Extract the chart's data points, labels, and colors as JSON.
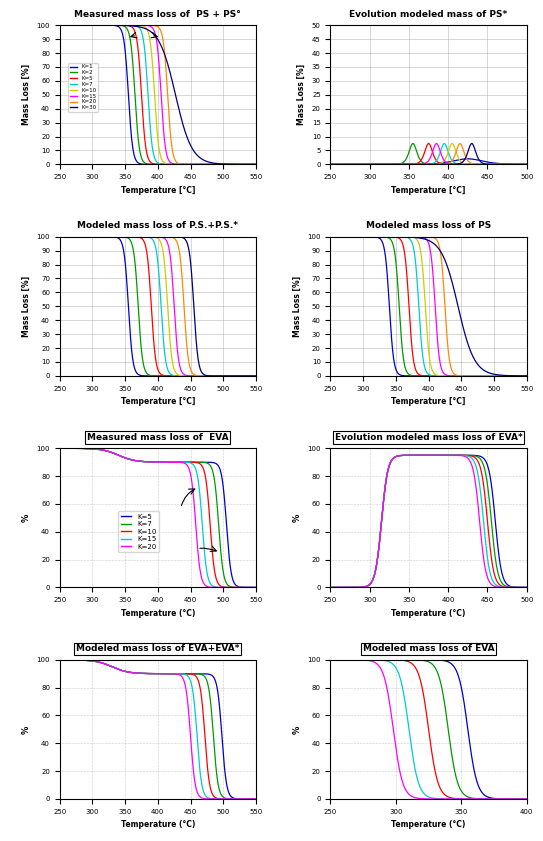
{
  "ps_k_values": [
    1,
    2,
    5,
    7,
    10,
    15,
    20,
    30
  ],
  "ps_colors": [
    "#0000CC",
    "#009900",
    "#FF0000",
    "#00CCCC",
    "#CCCC00",
    "#FF00FF",
    "#FF8800",
    "#000080"
  ],
  "ps_legend_labels": [
    "K=1",
    "K=2",
    "K=5",
    "K=7",
    "K=10",
    "K=15",
    "K=20",
    "K=30"
  ],
  "eva_k_values": [
    5,
    7,
    10,
    15,
    20
  ],
  "eva_colors": [
    "#0000CC",
    "#009900",
    "#FF0000",
    "#00CCCC",
    "#FF00FF"
  ],
  "eva_legend_labels": [
    "K=5",
    "K=7",
    "K=10",
    "K=15",
    "K=20"
  ],
  "plot1_title": "Measured mass loss of  PS + PS°",
  "plot2_title": "Evolution modeled mass of PS*",
  "plot3_title": "Modeled mass loss of P.S.+P.S.*",
  "plot4_title": "Modeled mass loss of PS",
  "plot5_title": "Measured mass loss of  EVA",
  "plot6_title": "Evolution modeled mass loss of EVA*",
  "plot7_title": "Modeled mass loss of EVA+EVA*",
  "plot8_title": "Modeled mass loss of EVA",
  "ylabel_massloss": "Mass Loss [%]",
  "ylabel_pct": "%",
  "xlabel_temp_C": "Temperature [°C]",
  "xlabel_temp_paren": "Temperature (°C)"
}
